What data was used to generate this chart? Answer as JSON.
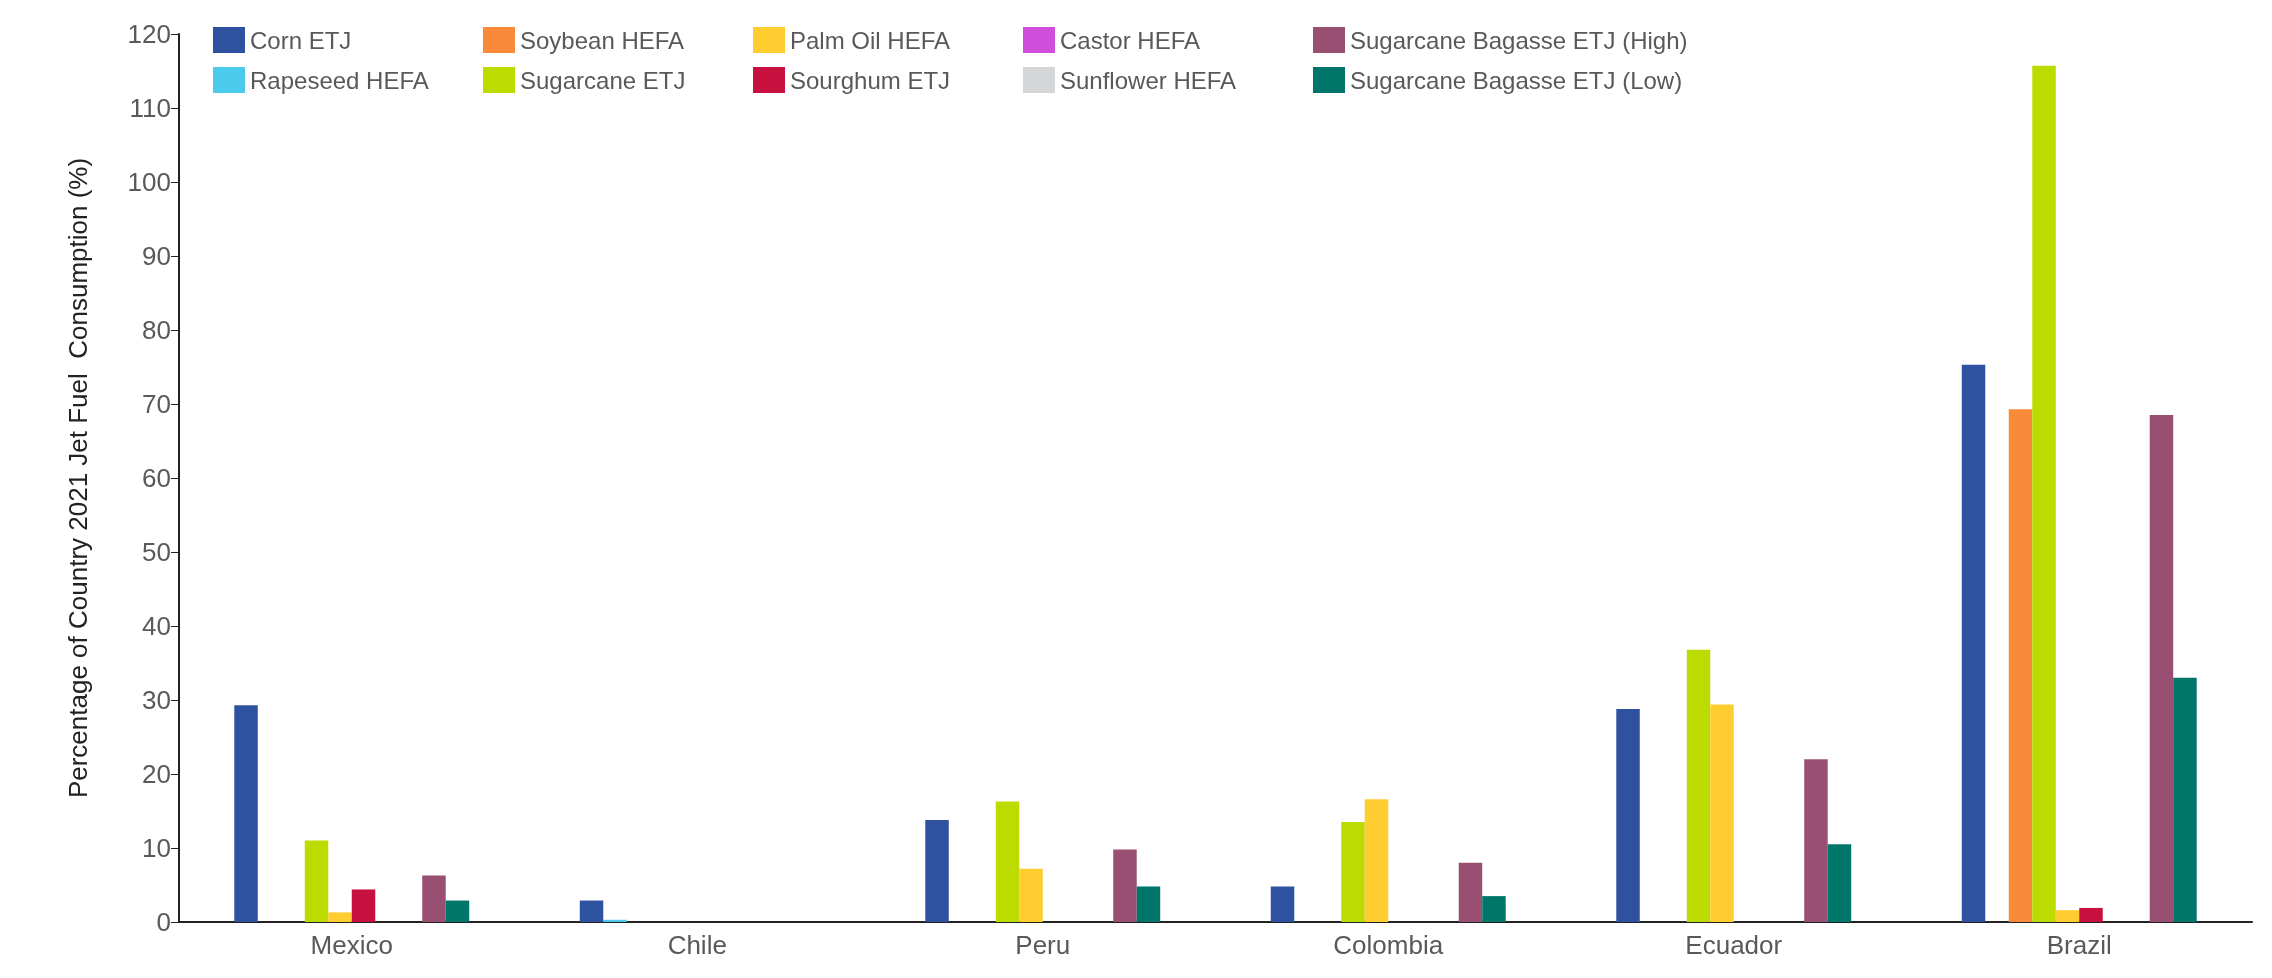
{
  "chart_data": {
    "type": "bar",
    "ylabel": "Percentage of Country 2021 Jet Fuel  Consumption (%)",
    "categories": [
      "Mexico",
      "Chile",
      "Peru",
      "Colombia",
      "Ecuador",
      "Brazil"
    ],
    "series": [
      {
        "name": "Corn ETJ",
        "color": "#2f52a0",
        "values": [
          29.3,
          2.9,
          13.8,
          4.8,
          28.8,
          75.3
        ]
      },
      {
        "name": "Rapeseed HEFA",
        "color": "#4dc9ec",
        "values": [
          0,
          0.3,
          0,
          0,
          0,
          0
        ]
      },
      {
        "name": "Soybean HEFA",
        "color": "#f88a3a",
        "values": [
          0,
          0,
          0,
          0,
          0,
          69.3
        ]
      },
      {
        "name": "Sugarcane ETJ",
        "color": "#bcdb00",
        "values": [
          11,
          0,
          16.3,
          13.5,
          36.8,
          115.7
        ]
      },
      {
        "name": "Palm Oil HEFA",
        "color": "#ffcd2f",
        "values": [
          1.3,
          0,
          7.2,
          16.6,
          29.4,
          1.6
        ]
      },
      {
        "name": "Sourghum ETJ",
        "color": "#c8103e",
        "values": [
          4.4,
          0,
          0,
          0,
          0,
          1.9
        ]
      },
      {
        "name": "Castor HEFA",
        "color": "#cf4fdb",
        "values": [
          0,
          0,
          0,
          0,
          0,
          0
        ]
      },
      {
        "name": "Sunflower HEFA",
        "color": "#d5d6d8",
        "values": [
          0,
          0,
          0,
          0,
          0,
          0
        ]
      },
      {
        "name": "Sugarcane Bagasse ETJ (High)",
        "color": "#984f72",
        "values": [
          6.3,
          0,
          9.8,
          8,
          22,
          68.5
        ]
      },
      {
        "name": "Sugarcane Bagasse ETJ (Low)",
        "color": "#00766a",
        "values": [
          2.9,
          0,
          4.8,
          3.5,
          10.5,
          33
        ]
      }
    ],
    "ylim": [
      0,
      120
    ],
    "yticks": [
      0,
      10,
      20,
      30,
      40,
      50,
      60,
      70,
      80,
      90,
      100,
      110,
      120
    ],
    "grid": false,
    "legend": "top left"
  }
}
